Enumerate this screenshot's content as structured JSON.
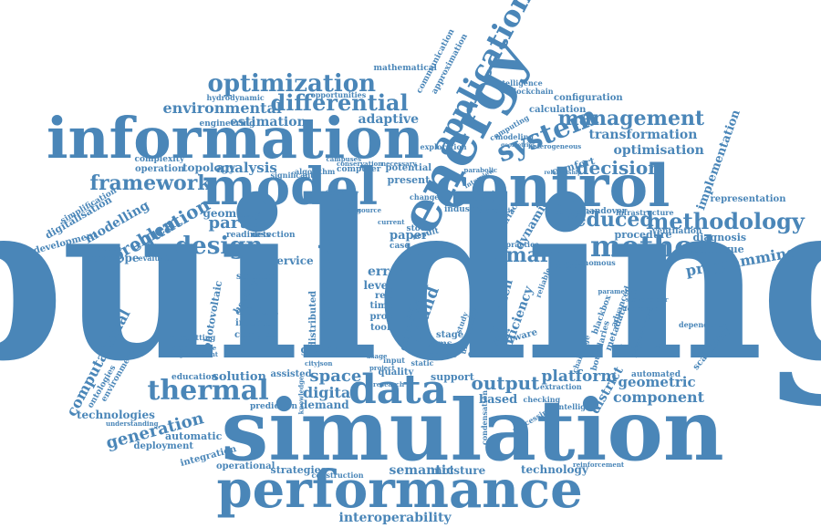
{
  "color": "#4a86b8",
  "words": [
    {
      "text": "building",
      "size": "xl",
      "rot": 0
    },
    {
      "text": "simulation",
      "size": "l",
      "rot": 0
    },
    {
      "text": "performance",
      "size": "m",
      "rot": 0
    },
    {
      "text": "information",
      "size": "m",
      "rot": 0
    },
    {
      "text": "control",
      "size": "m",
      "rot": 0
    },
    {
      "text": "model",
      "size": "m",
      "rot": 0
    },
    {
      "text": "energy",
      "size": "m",
      "rot": -62
    },
    {
      "text": "application",
      "size": "s",
      "rot": -62
    },
    {
      "text": "data",
      "size": "s",
      "rot": 0
    },
    {
      "text": "system",
      "size": "s",
      "rot": -22
    },
    {
      "text": "method",
      "size": "s",
      "rot": 0
    },
    {
      "text": "optimization",
      "size": "s",
      "rot": 0
    },
    {
      "text": "differential",
      "size": "s",
      "rot": 0
    },
    {
      "text": "framework",
      "size": "s",
      "rot": 0
    },
    {
      "text": "thermal",
      "size": "s",
      "rot": 0
    },
    {
      "text": "management",
      "size": "s",
      "rot": 0
    },
    {
      "text": "methodology",
      "size": "s",
      "rot": 0
    },
    {
      "text": "design",
      "size": "s",
      "rot": 0
    },
    {
      "text": "decision",
      "size": "s",
      "rot": 0
    },
    {
      "text": "smart",
      "size": "s",
      "rot": 0
    },
    {
      "text": "reduced",
      "size": "s",
      "rot": 0
    },
    {
      "text": "interoperability",
      "size": "xs",
      "rot": 0
    },
    {
      "text": "parameter",
      "size": "xs",
      "rot": -90
    },
    {
      "text": "space",
      "size": "xs",
      "rot": 0
    },
    {
      "text": "output",
      "size": "xs",
      "rot": 0
    },
    {
      "text": "digital",
      "size": "xs",
      "rot": 0
    },
    {
      "text": "semantic",
      "size": "xs",
      "rot": 0
    },
    {
      "text": "environmental",
      "size": "xs",
      "rot": 0
    },
    {
      "text": "equation",
      "size": "xs",
      "rot": -30
    },
    {
      "text": "generation",
      "size": "xs",
      "rot": -15
    },
    {
      "text": "component",
      "size": "xs",
      "rot": 0
    },
    {
      "text": "platform",
      "size": "xs",
      "rot": 0
    },
    {
      "text": "geometric",
      "size": "xs",
      "rot": 0
    },
    {
      "text": "optimisation",
      "size": "xs",
      "rot": 0
    },
    {
      "text": "estimation",
      "size": "xs",
      "rot": 0
    },
    {
      "text": "analysis",
      "size": "xs",
      "rot": 0
    },
    {
      "text": "partial",
      "size": "xs",
      "rot": 0
    },
    {
      "text": "basis",
      "size": "xs",
      "rot": 0
    },
    {
      "text": "adaptive",
      "size": "xs",
      "rot": 0
    },
    {
      "text": "transformation",
      "size": "xs",
      "rot": 0
    },
    {
      "text": "programming",
      "size": "xs",
      "rot": -10
    },
    {
      "text": "computational",
      "size": "xs",
      "rot": -62
    },
    {
      "text": "problem",
      "size": "xs",
      "rot": -30
    },
    {
      "text": "bound",
      "size": "xs",
      "rot": -70
    },
    {
      "text": "district",
      "size": "xs",
      "rot": -60
    },
    {
      "text": "approach",
      "size": "xs",
      "rot": -75
    },
    {
      "text": "efficiency",
      "size": "xs",
      "rot": -70
    },
    {
      "text": "implementation",
      "size": "xs",
      "rot": -70
    },
    {
      "text": "modelling",
      "size": "xs",
      "rot": -30
    },
    {
      "text": "dynamic",
      "size": "xs",
      "rot": -60
    },
    {
      "text": "error",
      "size": "xs",
      "rot": 0
    },
    {
      "text": "solution",
      "size": "xs",
      "rot": 0
    },
    {
      "text": "based",
      "size": "xs",
      "rot": 0
    },
    {
      "text": "moisture",
      "size": "xs",
      "rot": 0
    },
    {
      "text": "strategies",
      "size": "xs",
      "rot": 0
    },
    {
      "text": "technology",
      "size": "xs",
      "rot": 0
    },
    {
      "text": "topology",
      "size": "xs",
      "rot": 0
    },
    {
      "text": "demand",
      "size": "xs",
      "rot": 0
    },
    {
      "text": "geometry",
      "size": "xs",
      "rot": 0
    },
    {
      "text": "envelope",
      "size": "xs",
      "rot": 0
    },
    {
      "text": "service",
      "size": "xs",
      "rot": 0
    },
    {
      "text": "level",
      "size": "xs",
      "rot": 0
    },
    {
      "text": "comfort",
      "size": "xs",
      "rot": -15
    },
    {
      "text": "diagnosis",
      "size": "xs",
      "rot": 0
    },
    {
      "text": "procedure",
      "size": "xs",
      "rot": 0
    },
    {
      "text": "technique",
      "size": "xs",
      "rot": 0
    },
    {
      "text": "automatic",
      "size": "xs",
      "rot": 0
    },
    {
      "text": "technologies",
      "size": "xs",
      "rot": 0
    },
    {
      "text": "paper",
      "size": "xs",
      "rot": 0
    },
    {
      "text": "present",
      "size": "xs",
      "rot": 0
    },
    {
      "text": "potential",
      "size": "xs",
      "rot": 0
    },
    {
      "text": "calculation",
      "size": "xs",
      "rot": 0
    },
    {
      "text": "configuration",
      "size": "xs",
      "rot": 0
    },
    {
      "text": "representation",
      "size": "xs",
      "rot": 0
    },
    {
      "text": "digitalisation",
      "size": "xs",
      "rot": -30
    },
    {
      "text": "simplification",
      "size": "xs",
      "rot": -30
    },
    {
      "text": "development",
      "size": "xs",
      "rot": -15
    },
    {
      "text": "operation",
      "size": "xs",
      "rot": 0
    },
    {
      "text": "complexity",
      "size": "xs",
      "rot": 0
    },
    {
      "text": "engineering",
      "size": "xs",
      "rot": 0
    },
    {
      "text": "mathematical",
      "size": "xs",
      "rot": 0
    },
    {
      "text": "communication",
      "size": "xs",
      "rot": -62
    },
    {
      "text": "approximation",
      "size": "xs",
      "rot": -62
    },
    {
      "text": "intelligence",
      "size": "xs",
      "rot": 0
    },
    {
      "text": "blockchain",
      "size": "xs",
      "rot": 0
    },
    {
      "text": "handover",
      "size": "xs",
      "rot": 0
    },
    {
      "text": "controller",
      "size": "xs",
      "rot": 0
    },
    {
      "text": "infrastructure",
      "size": "xs",
      "rot": 0
    },
    {
      "text": "ventilation",
      "size": "xs",
      "rot": 0
    },
    {
      "text": "autonomous",
      "size": "xs",
      "rot": 0
    },
    {
      "text": "deployment",
      "size": "xs",
      "rot": 0
    },
    {
      "text": "integration",
      "size": "xs",
      "rot": -15
    },
    {
      "text": "operational",
      "size": "xs",
      "rot": 0
    },
    {
      "text": "construction",
      "size": "xs",
      "rot": 0
    },
    {
      "text": "environment",
      "size": "xs",
      "rot": -60
    },
    {
      "text": "ontologies",
      "size": "xs",
      "rot": -60
    },
    {
      "text": "education",
      "size": "xs",
      "rot": 0
    },
    {
      "text": "prediction",
      "size": "xs",
      "rot": 0
    },
    {
      "text": "quality",
      "size": "xs",
      "rot": 0
    },
    {
      "text": "growth",
      "size": "xs",
      "rot": 0
    },
    {
      "text": "support",
      "size": "xs",
      "rot": 0
    },
    {
      "text": "stage",
      "size": "xs",
      "rot": 0
    },
    {
      "text": "interest",
      "size": "xs",
      "rot": 0
    },
    {
      "text": "efficient",
      "size": "xs",
      "rot": 0
    },
    {
      "text": "science",
      "size": "xs",
      "rot": 0
    },
    {
      "text": "complex",
      "size": "xs",
      "rot": 0
    },
    {
      "text": "real",
      "size": "xs",
      "rot": 0
    },
    {
      "text": "time",
      "size": "xs",
      "rot": 0
    },
    {
      "text": "proc",
      "size": "xs",
      "rot": 0
    },
    {
      "text": "tool",
      "size": "xs",
      "rot": 0
    },
    {
      "text": "bems",
      "size": "xs",
      "rot": 0
    },
    {
      "text": "phase",
      "size": "xs",
      "rot": 0
    },
    {
      "text": "different",
      "size": "xs",
      "rot": 0
    },
    {
      "text": "assisted",
      "size": "xs",
      "rot": 0
    },
    {
      "text": "automated",
      "size": "xs",
      "rot": 0
    },
    {
      "text": "driven",
      "size": "xs",
      "rot": -75
    },
    {
      "text": "distributed",
      "size": "xs",
      "rot": -90
    },
    {
      "text": "photovoltaic",
      "size": "xs",
      "rot": -80
    },
    {
      "text": "heating",
      "size": "xs",
      "rot": -60
    },
    {
      "text": "industry",
      "size": "xs",
      "rot": 0
    },
    {
      "text": "stock",
      "size": "xs",
      "rot": 0
    },
    {
      "text": "case",
      "size": "xs",
      "rot": 0
    },
    {
      "text": "condensation",
      "size": "xs",
      "rot": -90
    },
    {
      "text": "computer",
      "size": "xs",
      "rot": 0
    },
    {
      "text": "opportunities",
      "size": "xs",
      "rot": 0
    },
    {
      "text": "hydrodynamic",
      "size": "xs",
      "rot": 0
    },
    {
      "text": "readiness",
      "size": "xs",
      "rot": 0
    },
    {
      "text": "detection",
      "size": "xs",
      "rot": 0
    },
    {
      "text": "evaluation",
      "size": "xs",
      "rot": 0
    },
    {
      "text": "formulation",
      "size": "xs",
      "rot": 0
    },
    {
      "text": "significant",
      "size": "xs",
      "rot": 0
    },
    {
      "text": "exploration",
      "size": "xs",
      "rot": 0
    },
    {
      "text": "computing",
      "size": "xs",
      "rot": -30
    },
    {
      "text": "modeling",
      "size": "xs",
      "rot": 0
    },
    {
      "text": "retrofitting",
      "size": "xs",
      "rot": 0
    },
    {
      "text": "architecture",
      "size": "xs",
      "rot": 0
    },
    {
      "text": "improvement",
      "size": "xs",
      "rot": 0
    },
    {
      "text": "understanding",
      "size": "xs",
      "rot": 0
    },
    {
      "text": "foundation",
      "size": "xs",
      "rot": 0
    },
    {
      "text": "dependence",
      "size": "xs",
      "rot": 0
    },
    {
      "text": "scalability",
      "size": "xs",
      "rot": -50
    },
    {
      "text": "reinforcement",
      "size": "xs",
      "rot": 0
    },
    {
      "text": "intelligent",
      "size": "xs",
      "rot": 0
    },
    {
      "text": "extraction",
      "size": "xs",
      "rot": 0
    },
    {
      "text": "checking",
      "size": "xs",
      "rot": 0
    },
    {
      "text": "processing",
      "size": "xs",
      "rot": -30
    },
    {
      "text": "metadata",
      "size": "xs",
      "rot": -70
    },
    {
      "text": "blackbox",
      "size": "xs",
      "rot": -70
    },
    {
      "text": "advanced",
      "size": "xs",
      "rot": -70
    },
    {
      "text": "software",
      "size": "xs",
      "rot": -15
    },
    {
      "text": "portable",
      "size": "xs",
      "rot": 0
    },
    {
      "text": "practice",
      "size": "xs",
      "rot": 0
    },
    {
      "text": "reliable",
      "size": "xs",
      "rot": -70
    },
    {
      "text": "change",
      "size": "xs",
      "rot": 0
    },
    {
      "text": "heterogeneous",
      "size": "xs",
      "rot": 0
    },
    {
      "text": "analytic",
      "size": "xs",
      "rot": 0
    },
    {
      "text": "actuation",
      "size": "xs",
      "rot": 0
    },
    {
      "text": "elements",
      "size": "xs",
      "rot": 0
    },
    {
      "text": "interview",
      "size": "xs",
      "rot": -30
    },
    {
      "text": "current",
      "size": "xs",
      "rot": 0
    },
    {
      "text": "source",
      "size": "xs",
      "rot": 0
    },
    {
      "text": "making",
      "size": "xs",
      "rot": 0
    },
    {
      "text": "flexibility",
      "size": "xs",
      "rot": 0
    },
    {
      "text": "algorithm",
      "size": "xs",
      "rot": 0
    },
    {
      "text": "geometries",
      "size": "xs",
      "rot": 0
    },
    {
      "text": "campuses",
      "size": "xs",
      "rot": 0
    },
    {
      "text": "conservation",
      "size": "xs",
      "rot": 0
    },
    {
      "text": "necessary",
      "size": "xs",
      "rot": 0
    },
    {
      "text": "parabolic",
      "size": "xs",
      "rot": 0
    },
    {
      "text": "relationship",
      "size": "xs",
      "rot": 0
    },
    {
      "text": "stakeholder",
      "size": "xs",
      "rot": 0
    },
    {
      "text": "technological",
      "size": "xs",
      "rot": 0
    },
    {
      "text": "parametric",
      "size": "xs",
      "rot": 0
    },
    {
      "text": "parameterized",
      "size": "xs",
      "rot": -70
    },
    {
      "text": "challenge",
      "size": "xs",
      "rot": -70
    },
    {
      "text": "boundaries",
      "size": "xs",
      "rot": -75
    },
    {
      "text": "surface",
      "size": "xs",
      "rot": -60
    },
    {
      "text": "research",
      "size": "xs",
      "rot": 0
    },
    {
      "text": "project",
      "size": "xs",
      "rot": 0
    },
    {
      "text": "input",
      "size": "xs",
      "rot": 0
    },
    {
      "text": "result",
      "size": "xs",
      "rot": -15
    },
    {
      "text": "cityjson",
      "size": "xs",
      "rot": 0
    },
    {
      "text": "static",
      "size": "xs",
      "rot": 0
    },
    {
      "text": "usage",
      "size": "xs",
      "rot": 0
    },
    {
      "text": "uncertainty",
      "size": "xs",
      "rot": -75
    },
    {
      "text": "study",
      "size": "xs",
      "rot": -70
    },
    {
      "text": "brick",
      "size": "xs",
      "rot": -70
    },
    {
      "text": "schema",
      "size": "xs",
      "rot": -70
    },
    {
      "text": "knowledge",
      "size": "xs",
      "rot": -90
    }
  ]
}
